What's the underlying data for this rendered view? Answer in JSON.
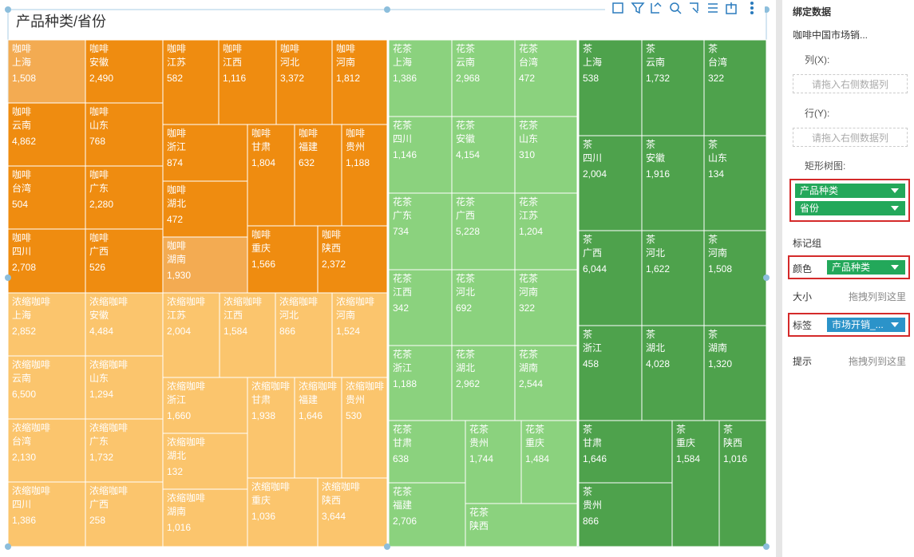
{
  "chart_data": {
    "type": "treemap",
    "title": "产品种类/省份",
    "groups": [
      {
        "name": "咖啡",
        "color": "#ef8c10",
        "categories": [
          "上海",
          "安徽",
          "江苏",
          "江西",
          "河北",
          "河南",
          "云南",
          "山东",
          "浙江",
          "甘肃",
          "福建",
          "贵州",
          "湖北",
          "台湾",
          "广东",
          "四川",
          "广西",
          "湖南",
          "重庆",
          "陕西"
        ],
        "values": [
          1508,
          2490,
          582,
          1116,
          3372,
          1812,
          4862,
          768,
          874,
          1804,
          632,
          1188,
          472,
          504,
          2280,
          2708,
          526,
          1930,
          1566,
          2372
        ],
        "value_labels": [
          "1,508",
          "2,490",
          "582",
          "1,116",
          "3,372",
          "1,812",
          "4,862",
          "768",
          "874",
          "1,804",
          "632",
          "1,188",
          "472",
          "504",
          "2,280",
          "2,708",
          "526",
          "1,930",
          "1,566",
          "2,372"
        ]
      },
      {
        "name": "浓缩咖啡",
        "color": "#fbc56d",
        "categories": [
          "上海",
          "安徽",
          "江苏",
          "江西",
          "河北",
          "河南",
          "云南",
          "山东",
          "浙江",
          "甘肃",
          "福建",
          "贵州",
          "湖北",
          "台湾",
          "广东",
          "四川",
          "广西",
          "湖南",
          "重庆",
          "陕西"
        ],
        "values": [
          2852,
          4484,
          2004,
          1584,
          866,
          1524,
          6500,
          1294,
          1660,
          1938,
          1646,
          530,
          132,
          2130,
          1732,
          1386,
          258,
          1016,
          1036,
          3644
        ],
        "value_labels": [
          "2,852",
          "4,484",
          "2,004",
          "1,584",
          "866",
          "1,524",
          "6,500",
          "1,294",
          "1,660",
          "1,938",
          "1,646",
          "530",
          "132",
          "2,130",
          "1,732",
          "1,386",
          "258",
          "1,016",
          "1,036",
          "3,644"
        ]
      },
      {
        "name": "花茶",
        "color": "#8bd27e",
        "categories": [
          "上海",
          "云南",
          "台湾",
          "四川",
          "安徽",
          "山东",
          "广东",
          "广西",
          "江苏",
          "江西",
          "河北",
          "河南",
          "浙江",
          "湖北",
          "湖南",
          "甘肃",
          "贵州",
          "重庆",
          "福建",
          "陕西"
        ],
        "values": [
          1386,
          2968,
          472,
          1146,
          4154,
          310,
          734,
          5228,
          1204,
          342,
          692,
          322,
          1188,
          2962,
          2544,
          638,
          1744,
          1484,
          2706,
          null
        ],
        "value_labels": [
          "1,386",
          "2,968",
          "472",
          "1,146",
          "4,154",
          "310",
          "734",
          "5,228",
          "1,204",
          "342",
          "692",
          "322",
          "1,188",
          "2,962",
          "2,544",
          "638",
          "1,744",
          "1,484",
          "2,706",
          null
        ]
      },
      {
        "name": "茶",
        "color": "#4ea24c",
        "categories": [
          "上海",
          "云南",
          "台湾",
          "四川",
          "安徽",
          "山东",
          "广西",
          "河北",
          "河南",
          "浙江",
          "湖北",
          "湖南",
          "甘肃",
          "重庆",
          "陕西",
          "贵州"
        ],
        "values": [
          538,
          1732,
          322,
          2004,
          1916,
          134,
          6044,
          1622,
          1508,
          458,
          4028,
          1320,
          1646,
          1584,
          1016,
          866
        ],
        "value_labels": [
          "538",
          "1,732",
          "322",
          "2,004",
          "1,916",
          "134",
          "6,044",
          "1,622",
          "1,508",
          "458",
          "4,028",
          "1,320",
          "1,646",
          "1,584",
          "1,016",
          "866"
        ]
      }
    ]
  },
  "panel": {
    "title": "绑定数据",
    "dataset": "咖啡中国市场销...",
    "columns": "列(X):",
    "columns_placeholder": "请拖入右侧数据列",
    "rows": "行(Y):",
    "rows_placeholder": "请拖入右侧数据列",
    "treemap": "矩形树图:",
    "treemap_fields": [
      "产品种类",
      "省份"
    ],
    "marks": "标记组",
    "color": "颜色",
    "color_field": "产品种类",
    "size": "大小",
    "size_placeholder": "拖拽列到这里",
    "label": "标签",
    "label_field": "市场开销_...",
    "tooltip": "提示",
    "tooltip_placeholder": "拖拽列到这里"
  }
}
